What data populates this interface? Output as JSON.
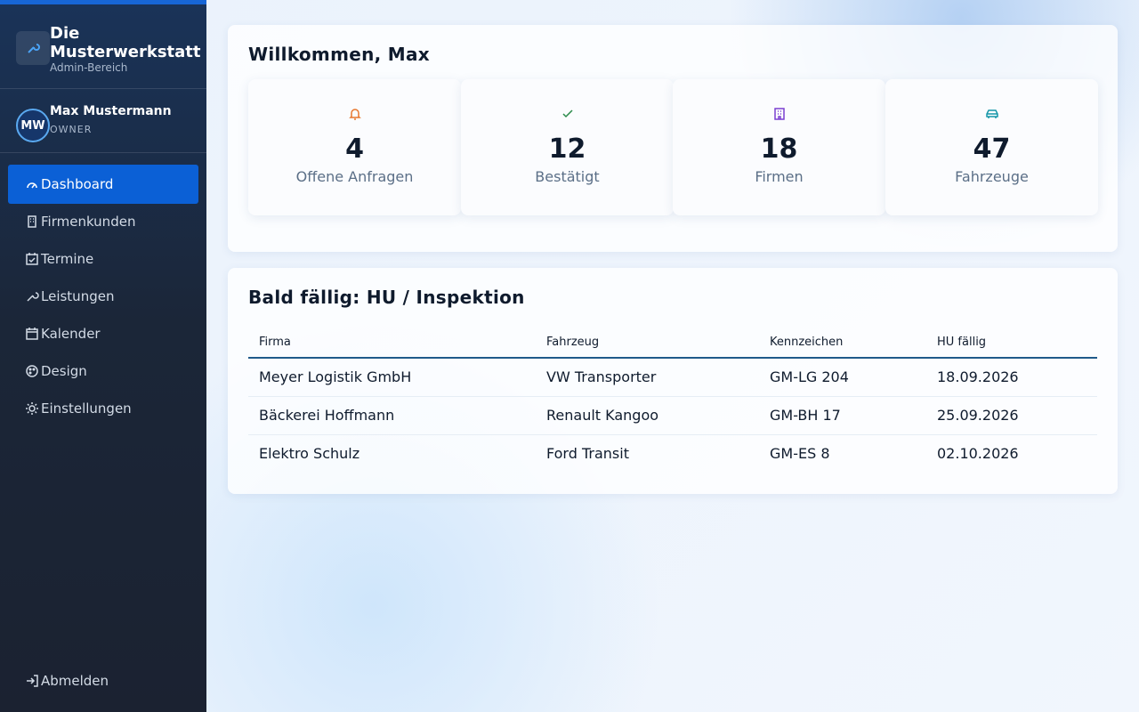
{
  "sidebar": {
    "brand": {
      "title": "Die Musterwerkstatt",
      "subtitle": "Admin-Bereich"
    },
    "user": {
      "initials": "MW",
      "name": "Max Mustermann",
      "role": "OWNER"
    },
    "nav": [
      "Dashboard",
      "Firmenkunden",
      "Termine",
      "Leistungen",
      "Kalender",
      "Design",
      "Einstellungen"
    ],
    "logout": "Abmelden"
  },
  "welcome": {
    "title": "Willkommen, Max",
    "stats": [
      {
        "value": 4,
        "label": "Offene Anfragen"
      },
      {
        "value": 12,
        "label": "Bestätigt"
      },
      {
        "value": 18,
        "label": "Firmen"
      },
      {
        "value": 47,
        "label": "Fahrzeuge"
      }
    ]
  },
  "due": {
    "title": "Bald fällig: HU / Inspektion",
    "columns": [
      "Firma",
      "Fahrzeug",
      "Kennzeichen",
      "HU fällig"
    ],
    "rows": [
      [
        "Meyer Logistik GmbH",
        "VW Transporter",
        "GM-LG 204",
        "18.09.2026"
      ],
      [
        "Bäckerei Hoffmann",
        "Renault Kangoo",
        "GM-BH 17",
        "25.09.2026"
      ],
      [
        "Elektro Schulz",
        "Ford Transit",
        "GM-ES 8",
        "02.10.2026"
      ]
    ]
  }
}
